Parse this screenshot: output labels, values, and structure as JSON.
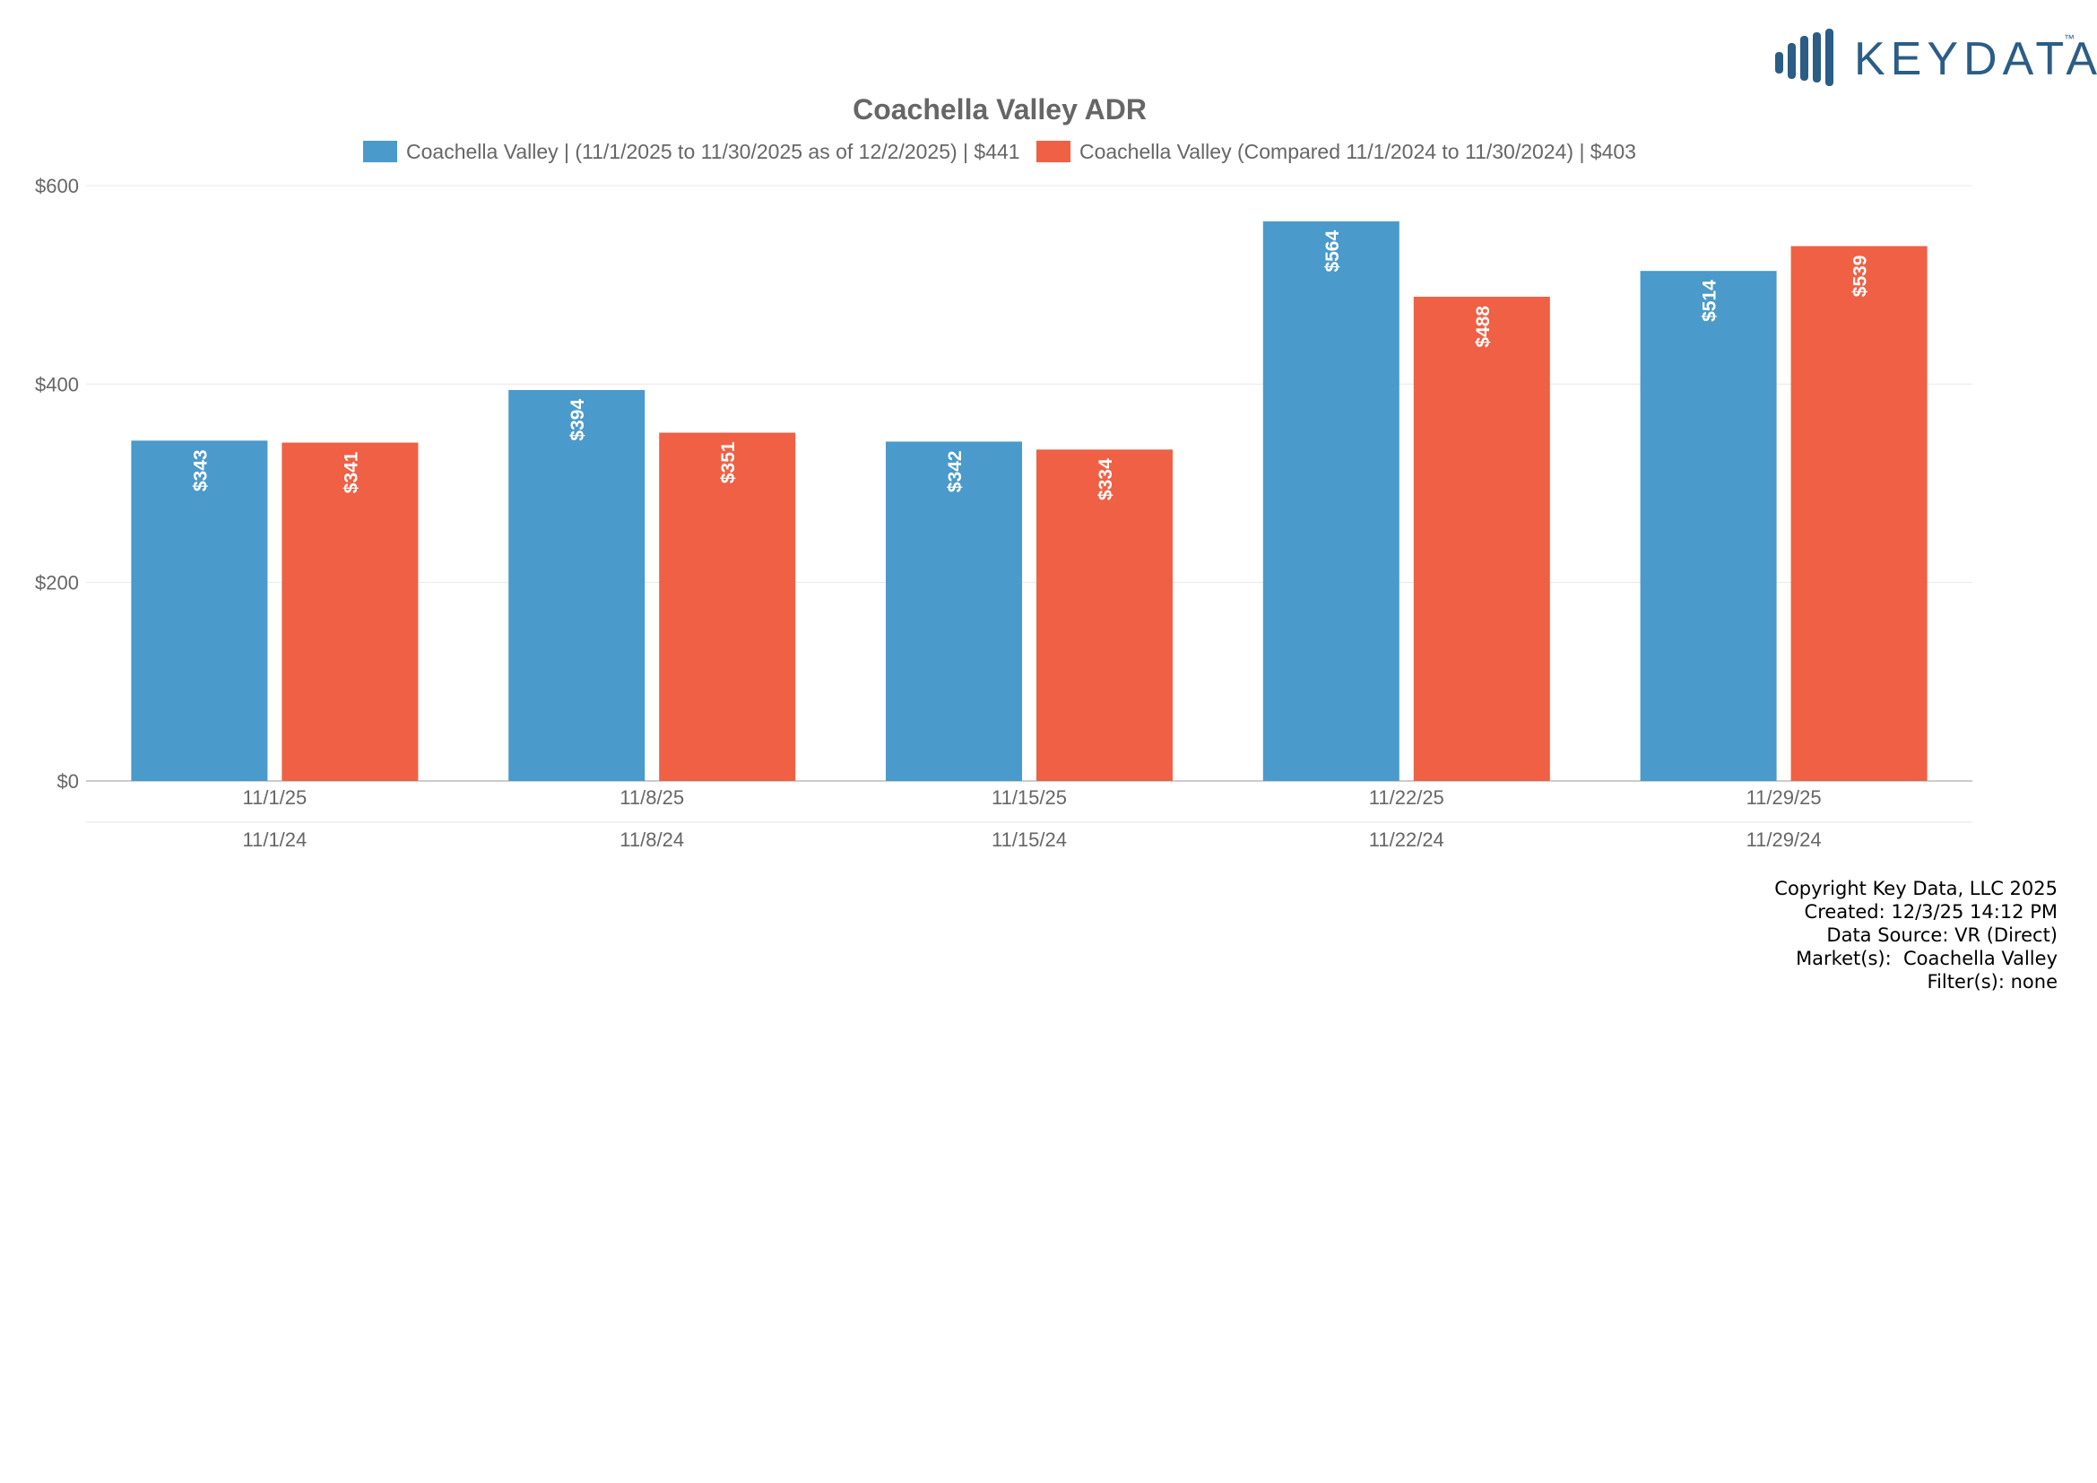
{
  "brand": {
    "logo_text": "KEYDATA",
    "trademark": "™",
    "color": "#2b5d86"
  },
  "chart_data": {
    "type": "bar",
    "title": "Coachella Valley ADR",
    "xlabel": "",
    "ylabel": "",
    "ylim": [
      0,
      600
    ],
    "yticks": [
      "$0",
      "$200",
      "$400",
      "$600"
    ],
    "ytick_values": [
      0,
      200,
      400,
      600
    ],
    "grid": true,
    "legend_position": "top-center",
    "categories": [
      "11/1/25",
      "11/8/25",
      "11/15/25",
      "11/22/25",
      "11/29/25"
    ],
    "categories_secondary": [
      "11/1/24",
      "11/8/24",
      "11/15/24",
      "11/22/24",
      "11/29/24"
    ],
    "series": [
      {
        "name": "Coachella Valley | (11/1/2025 to 11/30/2025 as of 12/2/2025) | $441",
        "color": "#4a9acb",
        "values": [
          343,
          394,
          342,
          564,
          514
        ],
        "labels": [
          "$343",
          "$394",
          "$342",
          "$564",
          "$514"
        ]
      },
      {
        "name": "Coachella Valley (Compared 11/1/2024 to 11/30/2024) | $403",
        "color": "#ef6044",
        "values": [
          341,
          351,
          334,
          488,
          539
        ],
        "labels": [
          "$341",
          "$351",
          "$334",
          "$488",
          "$539"
        ]
      }
    ]
  },
  "footer": {
    "copyright": "Copyright Key Data, LLC 2025",
    "created": "Created: 12/3/25 14:12 PM",
    "source": "Data Source: VR (Direct)",
    "markets": "Market(s):  Coachella Valley",
    "filters": "Filter(s): none"
  }
}
